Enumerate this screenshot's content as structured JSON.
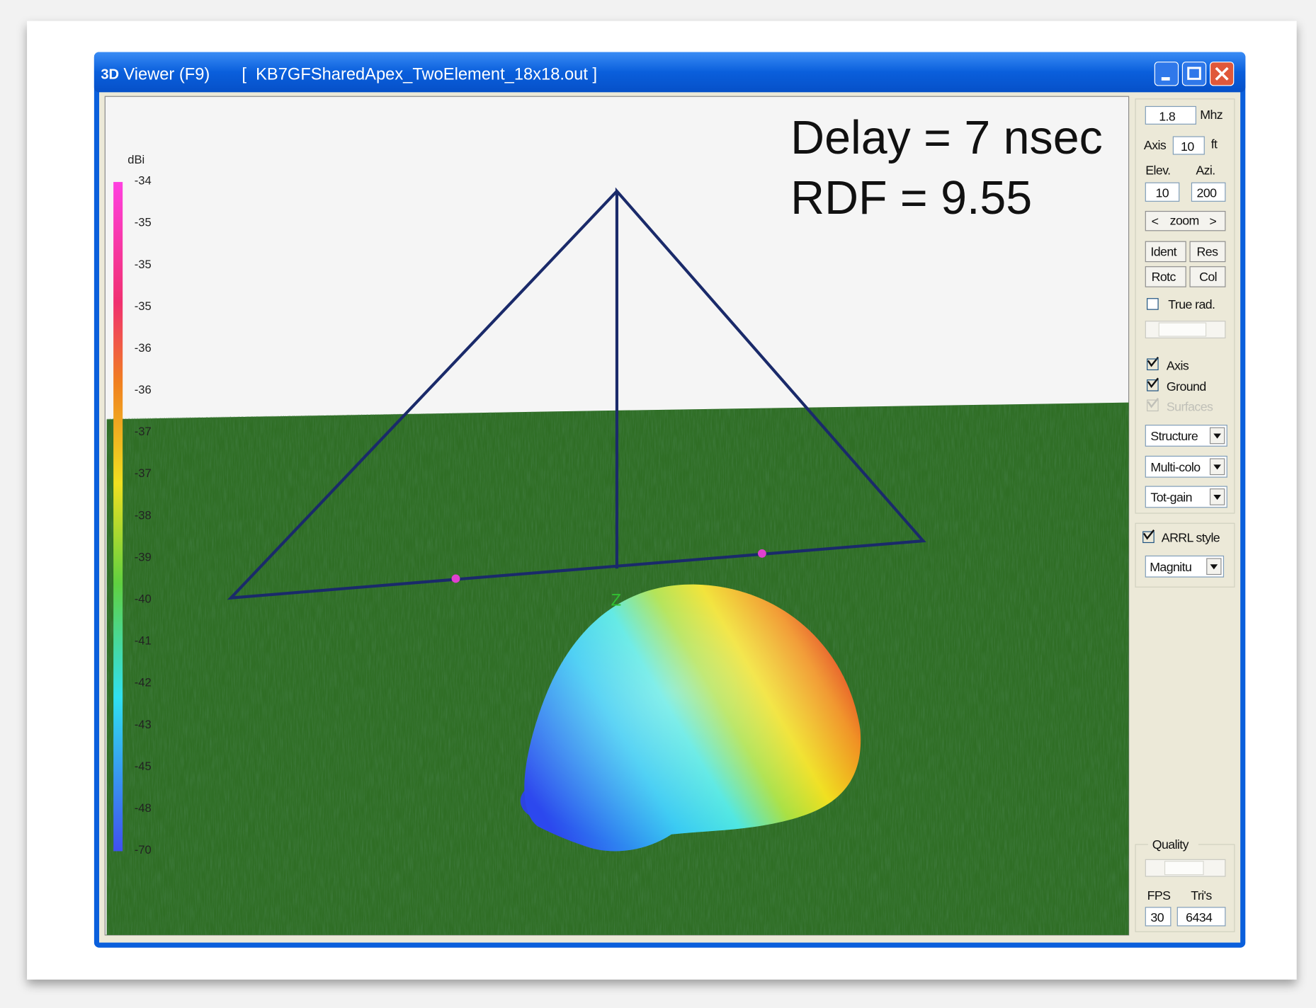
{
  "window": {
    "icon": "3D",
    "title": "Viewer (F9)",
    "file": "[  KB7GFSharedApex_TwoElement_18x18.out ]"
  },
  "annotation": [
    "Delay = 7 nsec",
    "RDF = 9.55"
  ],
  "legend": {
    "unit": "dBi",
    "labels": [
      -34,
      -35,
      -35,
      -35,
      -36,
      -36,
      -37,
      -37,
      -38,
      -39,
      -40,
      -41,
      -42,
      -43,
      -45,
      -48,
      -70
    ]
  },
  "scene": {
    "axis_label": "Z"
  },
  "panel": {
    "frequency": "1.8",
    "frequency_unit": "Mhz",
    "axis_label": "Axis",
    "axis_value": "10",
    "axis_unit": "ft",
    "elev_label": "Elev.",
    "azi_label": "Azi.",
    "elev": "10",
    "azi": "200",
    "zoom_prev": "<",
    "zoom": "zoom",
    "zoom_next": ">",
    "buttons": [
      "Ident",
      "Res",
      "Rotc",
      "Col"
    ],
    "true_rad": "True rad.",
    "checks": [
      "Axis",
      "Ground",
      "Surfaces"
    ],
    "dropdowns": [
      "Structure",
      "Multi-colo",
      "Tot-gain"
    ],
    "arrl_style": "ARRL style",
    "mode": "Magnitu",
    "quality": "Quality",
    "fps_label": "FPS",
    "tris_label": "Tri's",
    "fps": "30",
    "tris": "6434"
  }
}
